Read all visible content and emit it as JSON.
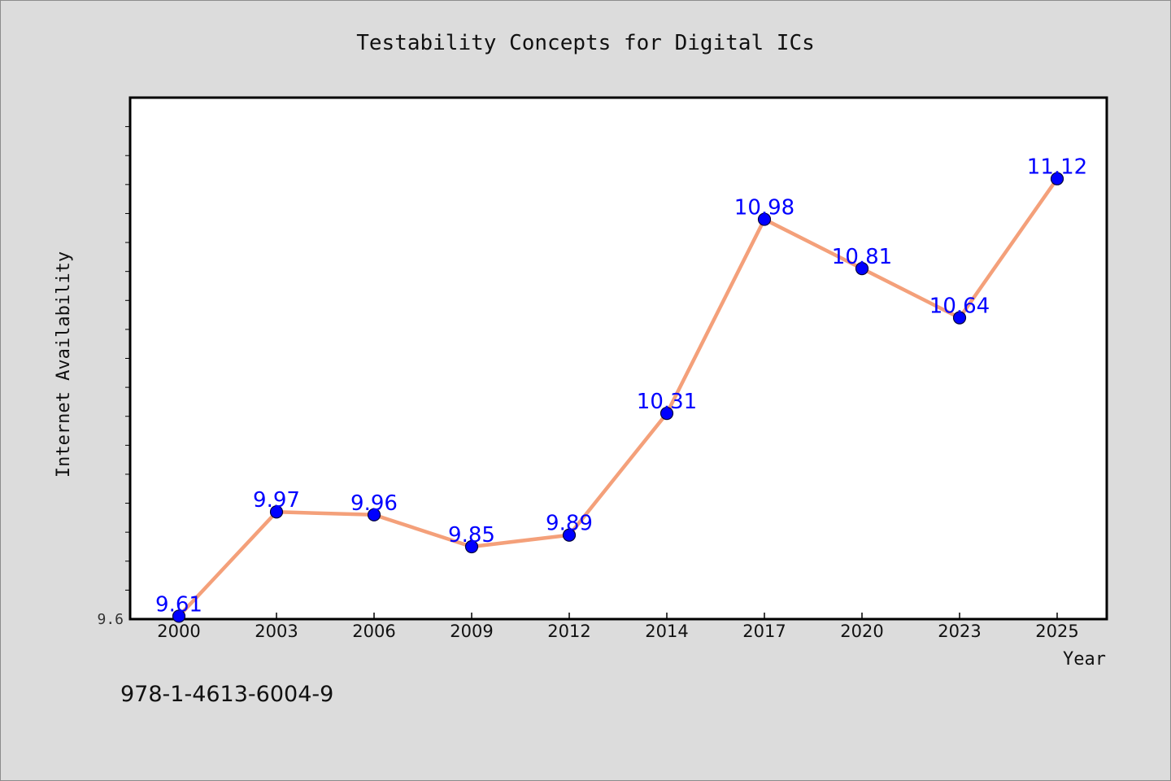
{
  "chart_data": {
    "type": "line",
    "title": "Testability Concepts for Digital ICs",
    "xlabel": "Year",
    "ylabel": "Internet Availability",
    "categories": [
      "2000",
      "2003",
      "2006",
      "2009",
      "2012",
      "2014",
      "2017",
      "2020",
      "2023",
      "2025"
    ],
    "series": [
      {
        "values": [
          9.61,
          9.97,
          9.96,
          9.85,
          9.89,
          10.31,
          10.98,
          10.81,
          10.64,
          11.12
        ],
        "line_color": "#f4a07a",
        "marker_color": "#0000ff"
      }
    ],
    "data_labels": [
      "9.61",
      "9.97",
      "9.96",
      "9.85",
      "9.89",
      "10.31",
      "10.98",
      "10.81",
      "10.64",
      "11.12"
    ],
    "y_tick_labels": [
      "9.6"
    ],
    "ylim": [
      9.6,
      11.4
    ],
    "grid": false,
    "legend": "none"
  },
  "footer": {
    "isbn": "978-1-4613-6004-9"
  }
}
